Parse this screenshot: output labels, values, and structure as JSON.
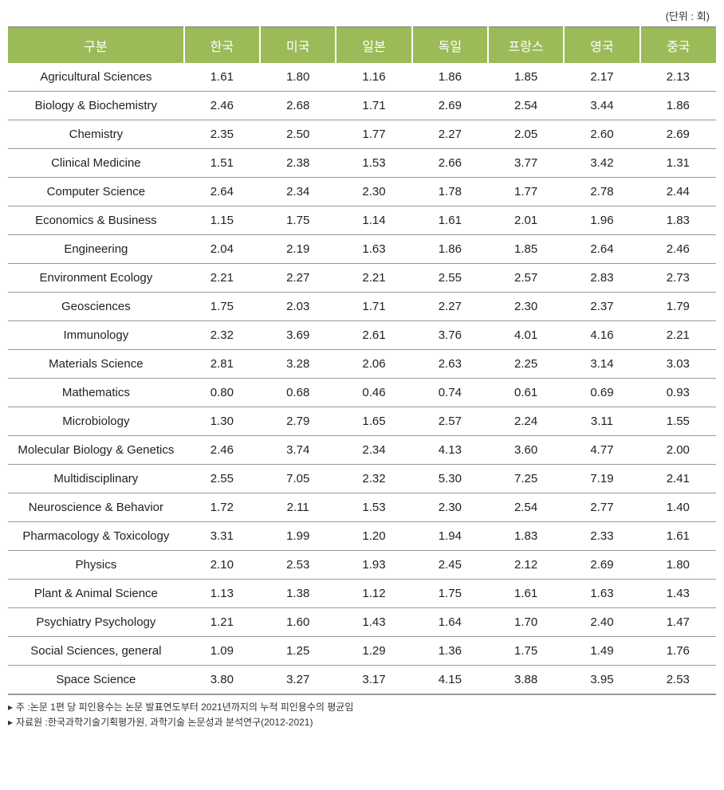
{
  "unit_label": "(단위 : 회)",
  "table": {
    "header_bg": "#9bbb59",
    "header_fg": "#ffffff",
    "border_color": "#999999",
    "columns": [
      "구분",
      "한국",
      "미국",
      "일본",
      "독일",
      "프랑스",
      "영국",
      "중국"
    ],
    "rows": [
      {
        "label": "Agricultural Sciences",
        "values": [
          "1.61",
          "1.80",
          "1.16",
          "1.86",
          "1.85",
          "2.17",
          "2.13"
        ]
      },
      {
        "label": "Biology & Biochemistry",
        "values": [
          "2.46",
          "2.68",
          "1.71",
          "2.69",
          "2.54",
          "3.44",
          "1.86"
        ]
      },
      {
        "label": "Chemistry",
        "values": [
          "2.35",
          "2.50",
          "1.77",
          "2.27",
          "2.05",
          "2.60",
          "2.69"
        ]
      },
      {
        "label": "Clinical Medicine",
        "values": [
          "1.51",
          "2.38",
          "1.53",
          "2.66",
          "3.77",
          "3.42",
          "1.31"
        ]
      },
      {
        "label": "Computer Science",
        "values": [
          "2.64",
          "2.34",
          "2.30",
          "1.78",
          "1.77",
          "2.78",
          "2.44"
        ]
      },
      {
        "label": "Economics & Business",
        "values": [
          "1.15",
          "1.75",
          "1.14",
          "1.61",
          "2.01",
          "1.96",
          "1.83"
        ]
      },
      {
        "label": "Engineering",
        "values": [
          "2.04",
          "2.19",
          "1.63",
          "1.86",
          "1.85",
          "2.64",
          "2.46"
        ]
      },
      {
        "label": "Environment Ecology",
        "values": [
          "2.21",
          "2.27",
          "2.21",
          "2.55",
          "2.57",
          "2.83",
          "2.73"
        ]
      },
      {
        "label": "Geosciences",
        "values": [
          "1.75",
          "2.03",
          "1.71",
          "2.27",
          "2.30",
          "2.37",
          "1.79"
        ]
      },
      {
        "label": "Immunology",
        "values": [
          "2.32",
          "3.69",
          "2.61",
          "3.76",
          "4.01",
          "4.16",
          "2.21"
        ]
      },
      {
        "label": "Materials Science",
        "values": [
          "2.81",
          "3.28",
          "2.06",
          "2.63",
          "2.25",
          "3.14",
          "3.03"
        ]
      },
      {
        "label": "Mathematics",
        "values": [
          "0.80",
          "0.68",
          "0.46",
          "0.74",
          "0.61",
          "0.69",
          "0.93"
        ]
      },
      {
        "label": "Microbiology",
        "values": [
          "1.30",
          "2.79",
          "1.65",
          "2.57",
          "2.24",
          "3.11",
          "1.55"
        ]
      },
      {
        "label": "Molecular Biology & Genetics",
        "values": [
          "2.46",
          "3.74",
          "2.34",
          "4.13",
          "3.60",
          "4.77",
          "2.00"
        ]
      },
      {
        "label": "Multidisciplinary",
        "values": [
          "2.55",
          "7.05",
          "2.32",
          "5.30",
          "7.25",
          "7.19",
          "2.41"
        ]
      },
      {
        "label": "Neuroscience & Behavior",
        "values": [
          "1.72",
          "2.11",
          "1.53",
          "2.30",
          "2.54",
          "2.77",
          "1.40"
        ]
      },
      {
        "label": "Pharmacology & Toxicology",
        "values": [
          "3.31",
          "1.99",
          "1.20",
          "1.94",
          "1.83",
          "2.33",
          "1.61"
        ]
      },
      {
        "label": "Physics",
        "values": [
          "2.10",
          "2.53",
          "1.93",
          "2.45",
          "2.12",
          "2.69",
          "1.80"
        ]
      },
      {
        "label": "Plant & Animal Science",
        "values": [
          "1.13",
          "1.38",
          "1.12",
          "1.75",
          "1.61",
          "1.63",
          "1.43"
        ]
      },
      {
        "label": "Psychiatry Psychology",
        "values": [
          "1.21",
          "1.60",
          "1.43",
          "1.64",
          "1.70",
          "2.40",
          "1.47"
        ]
      },
      {
        "label": "Social Sciences, general",
        "values": [
          "1.09",
          "1.25",
          "1.29",
          "1.36",
          "1.75",
          "1.49",
          "1.76"
        ]
      },
      {
        "label": "Space Science",
        "values": [
          "3.80",
          "3.27",
          "3.17",
          "4.15",
          "3.88",
          "3.95",
          "2.53"
        ]
      }
    ]
  },
  "footnotes": {
    "marker": "▸",
    "note1_label": "주 : ",
    "note1_text": "논문 1편 당 피인용수는 논문 발표연도부터 2021년까지의 누적 피인용수의 평균임",
    "note2_label": "자료원 : ",
    "note2_text": "한국과학기술기획평가원, 과학기술 논문성과 분석연구(2012-2021)"
  }
}
